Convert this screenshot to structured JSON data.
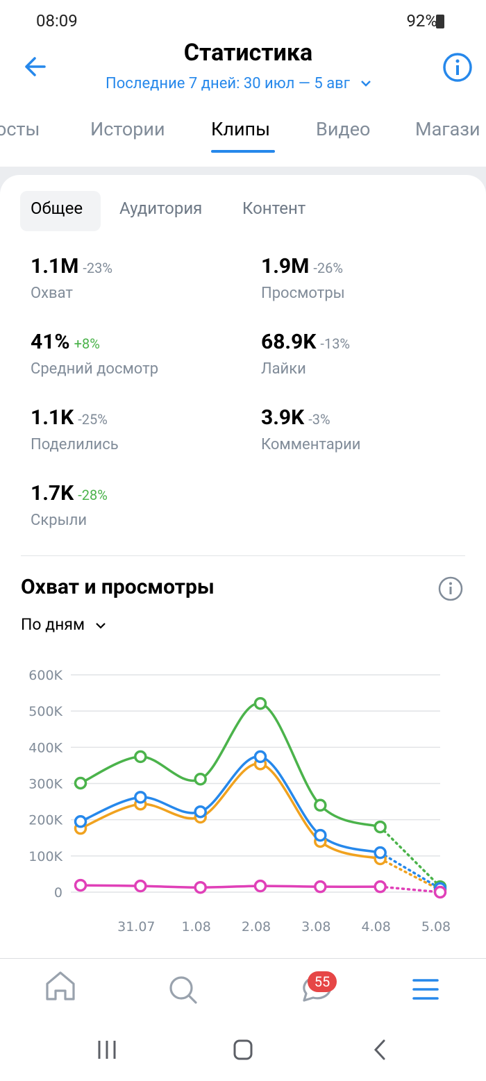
{
  "status_bar": {
    "time": "08:09",
    "battery": "92%"
  },
  "header": {
    "title": "Статистика",
    "period": "Последние 7 дней: 30 июл — 5 авг"
  },
  "tabs": [
    "осты",
    "Истории",
    "Клипы",
    "Видео",
    "Магази"
  ],
  "subtabs": [
    "Общее",
    "Аудитория",
    "Контент"
  ],
  "metrics": [
    {
      "value": "1.1M",
      "change": "-23%",
      "label": "Охват",
      "color": "#818c99"
    },
    {
      "value": "1.9M",
      "change": "-26%",
      "label": "Просмотры",
      "color": "#818c99"
    },
    {
      "value": "41%",
      "change": "+8%",
      "label": "Средний досмотр",
      "color": "#4bb34b"
    },
    {
      "value": "68.9K",
      "change": "-13%",
      "label": "Лайки",
      "color": "#818c99"
    },
    {
      "value": "1.1K",
      "change": "-25%",
      "label": "Поделились",
      "color": "#818c99"
    },
    {
      "value": "3.9K",
      "change": "-3%",
      "label": "Комментарии",
      "color": "#818c99"
    },
    {
      "value": "1.7K",
      "change": "-28%",
      "label": "Скрыли",
      "color": "#4bb34b"
    }
  ],
  "section": {
    "title": "Охват и просмотры",
    "period": "По дням"
  },
  "nav": {
    "badge": 55
  },
  "chart_data": {
    "type": "line",
    "categories": [
      null,
      "31.07",
      "1.08",
      "2.08",
      "3.08",
      "4.08",
      "5.08"
    ],
    "series": [
      {
        "color": "#4bb34b",
        "values": [
          301000,
          374000,
          312000,
          521000,
          240000,
          180000,
          15000
        ]
      },
      {
        "color": "#f0a21f",
        "values": [
          176000,
          243000,
          207000,
          354000,
          140000,
          92000,
          6000
        ]
      },
      {
        "color": "#2688eb",
        "values": [
          195000,
          262000,
          222000,
          374000,
          157000,
          109000,
          10000
        ]
      },
      {
        "color": "#e040b8",
        "values": [
          19000,
          17000,
          13000,
          17000,
          15000,
          15000,
          0
        ]
      }
    ],
    "ylim": [
      0,
      600000
    ],
    "yticks": [
      0,
      {
        "value": 100000,
        "label": "100K"
      },
      {
        "value": 200000,
        "label": "200K"
      },
      {
        "value": 300000,
        "label": "300K"
      },
      {
        "value": 400000,
        "label": "400K"
      },
      {
        "value": 500000,
        "label": "500K"
      },
      {
        "value": 600000,
        "label": "600K"
      }
    ],
    "grid": true
  }
}
